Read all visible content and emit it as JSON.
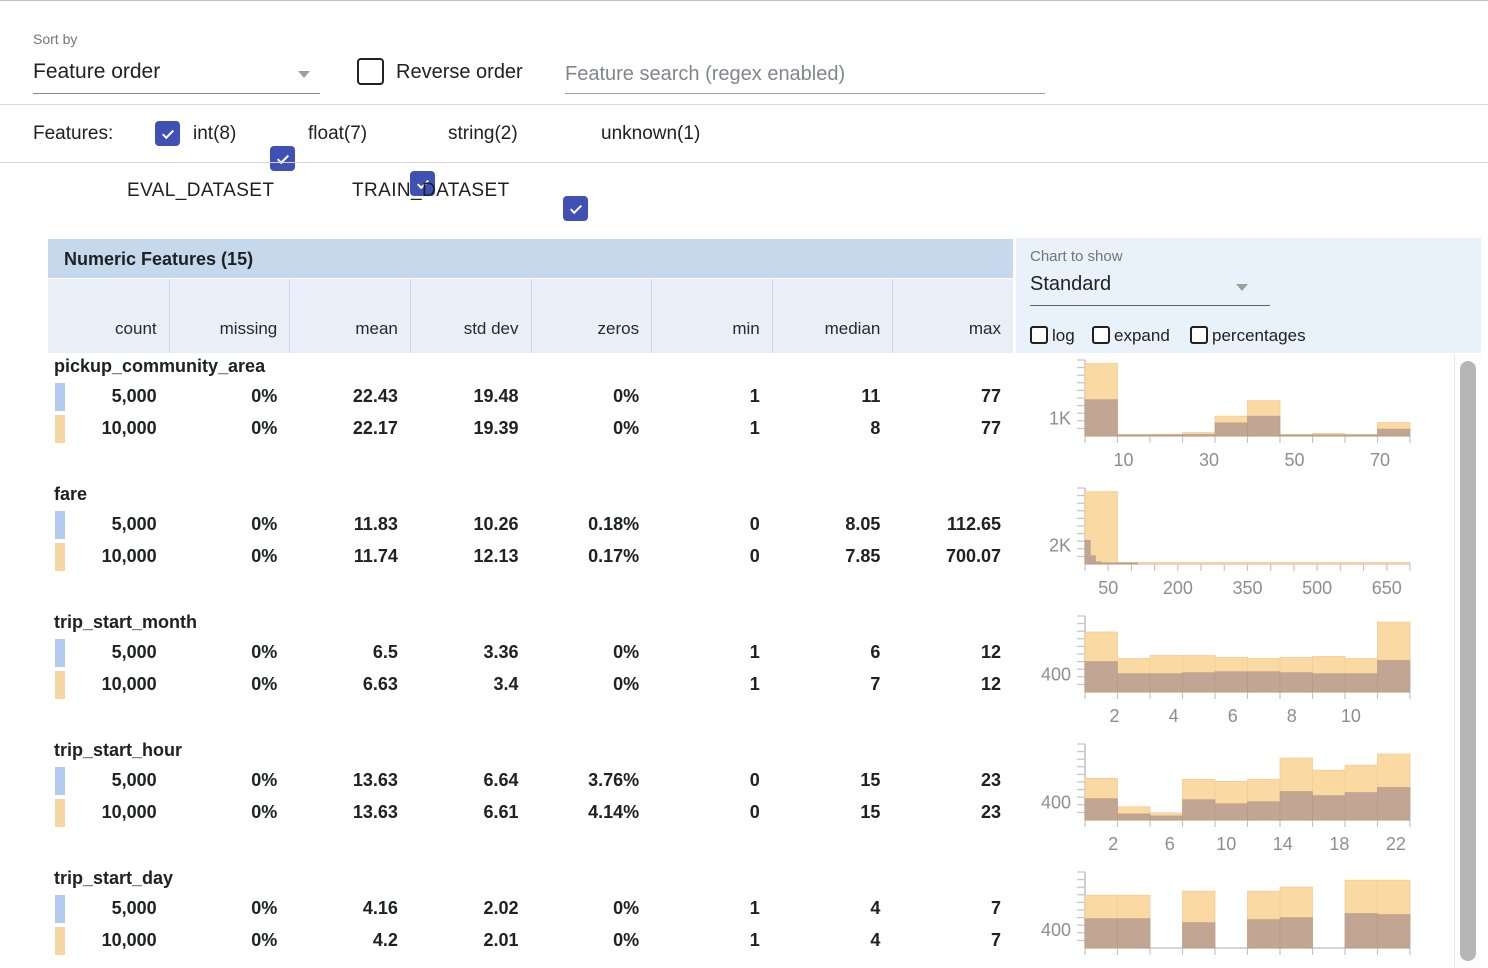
{
  "toolbar": {
    "sort_by_label": "Sort by",
    "sort_value": "Feature order",
    "reverse_label": "Reverse order",
    "search_placeholder": "Feature search (regex enabled)"
  },
  "filter_bar": {
    "label": "Features:",
    "types": [
      {
        "label": "int(8)",
        "checked": true
      },
      {
        "label": "float(7)",
        "checked": true
      },
      {
        "label": "string(2)",
        "checked": true
      },
      {
        "label": "unknown(1)",
        "checked": true
      }
    ]
  },
  "datasets": [
    {
      "name": "EVAL_DATASET",
      "checked": true,
      "checkbox_color": "#a8c6f0",
      "chip_color": "#b3cbf3"
    },
    {
      "name": "TRAIN_DATASET",
      "checked": true,
      "checkbox_color": "#f8cf96",
      "chip_color": "#f8d6a2"
    }
  ],
  "table": {
    "title": "Numeric Features (15)",
    "columns": [
      "count",
      "missing",
      "mean",
      "std dev",
      "zeros",
      "min",
      "median",
      "max"
    ]
  },
  "chart_controls": {
    "label": "Chart to show",
    "selected": "Standard",
    "toggles": [
      {
        "label": "log",
        "checked": false
      },
      {
        "label": "expand",
        "checked": false
      },
      {
        "label": "percentages",
        "checked": false
      }
    ]
  },
  "colors": {
    "accent_indigo": "#3f51b5",
    "header_blue": "#c5d8ec",
    "subheader_blue": "#e9eff8",
    "panel_blue": "#e9f1fb",
    "hist_train_fill": "#fbd9a3",
    "hist_overlap_fill": "#c3a593"
  },
  "features": [
    {
      "name": "pickup_community_area",
      "rows": [
        {
          "dataset": "EVAL_DATASET",
          "cells": [
            "5,000",
            "0%",
            "22.43",
            "19.48",
            "0%",
            "1",
            "11",
            "77"
          ]
        },
        {
          "dataset": "TRAIN_DATASET",
          "cells": [
            "10,000",
            "0%",
            "22.17",
            "19.39",
            "0%",
            "1",
            "8",
            "77"
          ]
        }
      ]
    },
    {
      "name": "fare",
      "rows": [
        {
          "dataset": "EVAL_DATASET",
          "cells": [
            "5,000",
            "0%",
            "11.83",
            "10.26",
            "0.18%",
            "0",
            "8.05",
            "112.65"
          ]
        },
        {
          "dataset": "TRAIN_DATASET",
          "cells": [
            "10,000",
            "0%",
            "11.74",
            "12.13",
            "0.17%",
            "0",
            "7.85",
            "700.07"
          ]
        }
      ]
    },
    {
      "name": "trip_start_month",
      "rows": [
        {
          "dataset": "EVAL_DATASET",
          "cells": [
            "5,000",
            "0%",
            "6.5",
            "3.36",
            "0%",
            "1",
            "6",
            "12"
          ]
        },
        {
          "dataset": "TRAIN_DATASET",
          "cells": [
            "10,000",
            "0%",
            "6.63",
            "3.4",
            "0%",
            "1",
            "7",
            "12"
          ]
        }
      ]
    },
    {
      "name": "trip_start_hour",
      "rows": [
        {
          "dataset": "EVAL_DATASET",
          "cells": [
            "5,000",
            "0%",
            "13.63",
            "6.64",
            "3.76%",
            "0",
            "15",
            "23"
          ]
        },
        {
          "dataset": "TRAIN_DATASET",
          "cells": [
            "10,000",
            "0%",
            "13.63",
            "6.61",
            "4.14%",
            "0",
            "15",
            "23"
          ]
        }
      ]
    },
    {
      "name": "trip_start_day",
      "rows": [
        {
          "dataset": "EVAL_DATASET",
          "cells": [
            "5,000",
            "0%",
            "4.16",
            "2.02",
            "0%",
            "1",
            "4",
            "7"
          ]
        },
        {
          "dataset": "TRAIN_DATASET",
          "cells": [
            "10,000",
            "0%",
            "4.2",
            "2.01",
            "0%",
            "1",
            "4",
            "7"
          ]
        }
      ]
    }
  ],
  "chart_data": [
    {
      "title": "pickup_community_area",
      "type": "histogram",
      "legend_position": "none",
      "grid": false,
      "x_range": [
        1,
        77
      ],
      "xticks": [
        10,
        30,
        50,
        70
      ],
      "minor_ticks": 10,
      "y_tick_label": "1K",
      "y_tick_value": 1000,
      "y_top_estimate": 4400,
      "eval_range_fraction": 1,
      "series": [
        {
          "name": "TRAIN_DATASET",
          "values": [
            4200,
            60,
            100,
            200,
            1150,
            2050,
            40,
            150,
            30,
            780
          ]
        },
        {
          "name": "EVAL_DATASET",
          "values": [
            2100,
            30,
            40,
            90,
            760,
            1150,
            20,
            60,
            10,
            400
          ]
        }
      ]
    },
    {
      "title": "fare",
      "type": "histogram",
      "legend_position": "none",
      "grid": false,
      "x_range": [
        0,
        700
      ],
      "xticks": [
        50,
        200,
        350,
        500,
        650
      ],
      "minor_ticks": 14,
      "y_tick_label": "2K",
      "y_tick_value": 2000,
      "y_top_estimate": 8300,
      "eval_range_fraction": 0.161,
      "series": [
        {
          "name": "TRAIN_DATASET",
          "values": [
            7900,
            60,
            25,
            10,
            8,
            5,
            4,
            3,
            2,
            2
          ]
        },
        {
          "name": "EVAL_DATASET",
          "values": [
            2600,
            900,
            250,
            60,
            15,
            5,
            3,
            2,
            1,
            1
          ]
        }
      ]
    },
    {
      "title": "trip_start_month",
      "type": "histogram",
      "legend_position": "none",
      "grid": false,
      "x_range": [
        1,
        12
      ],
      "xticks": [
        2,
        4,
        6,
        8,
        10
      ],
      "minor_ticks": 10,
      "y_tick_label": "400",
      "y_tick_value": 400,
      "y_top_estimate": 1760,
      "eval_range_fraction": 1,
      "series": [
        {
          "name": "TRAIN_DATASET",
          "values": [
            1390,
            776,
            846,
            846,
            800,
            776,
            800,
            823,
            776,
            1620
          ]
        },
        {
          "name": "EVAL_DATASET",
          "values": [
            705,
            423,
            423,
            447,
            470,
            470,
            447,
            423,
            423,
            729
          ]
        }
      ]
    },
    {
      "title": "trip_start_hour",
      "type": "histogram",
      "legend_position": "none",
      "grid": false,
      "x_range": [
        0,
        23
      ],
      "xticks": [
        2,
        6,
        10,
        14,
        18,
        22
      ],
      "minor_ticks": 10,
      "y_tick_label": "400",
      "y_tick_value": 400,
      "y_top_estimate": 1760,
      "eval_range_fraction": 1,
      "series": [
        {
          "name": "TRAIN_DATASET",
          "values": [
            965,
            306,
            165,
            941,
            894,
            941,
            1435,
            1153,
            1271,
            1529
          ]
        },
        {
          "name": "EVAL_DATASET",
          "values": [
            494,
            141,
            94,
            470,
            376,
            423,
            659,
            564,
            635,
            753
          ]
        }
      ]
    },
    {
      "title": "trip_start_day",
      "type": "histogram",
      "legend_position": "none",
      "grid": false,
      "x_range": [
        1,
        7
      ],
      "xticks": [],
      "minor_ticks": 10,
      "y_tick_label": "400",
      "y_tick_value": 400,
      "y_top_estimate": 1670,
      "eval_range_fraction": 1,
      "series": [
        {
          "name": "TRAIN_DATASET",
          "values": [
            1160,
            1160,
            0,
            1250,
            0,
            1250,
            1340,
            0,
            1490,
            1490
          ]
        },
        {
          "name": "EVAL_DATASET",
          "values": [
            645,
            645,
            0,
            557,
            0,
            623,
            668,
            0,
            757,
            734
          ]
        }
      ]
    }
  ]
}
